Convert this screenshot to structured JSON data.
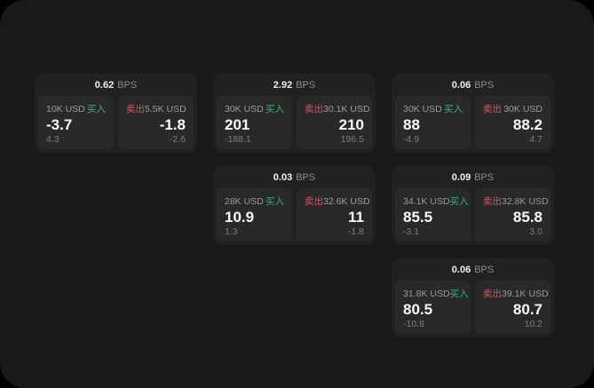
{
  "labels": {
    "buy": "买入",
    "sell": "卖出",
    "bps_unit": "BPS"
  },
  "colors": {
    "buy": "#3fae73",
    "sell": "#c55a6a",
    "value_text": "#fafafa",
    "muted_text": "#9b9b9b",
    "window_background": "#191919",
    "card_background": "#212121",
    "panel_background": "#292929"
  },
  "cards": [
    {
      "row": 1,
      "col": 1,
      "bps": "0.62",
      "buy": {
        "size": "10K USD",
        "value": "-3.7",
        "sub": "4.3"
      },
      "sell": {
        "size": "5.5K USD",
        "value": "-1.8",
        "sub": "-2.6"
      }
    },
    {
      "row": 1,
      "col": 2,
      "bps": "2.92",
      "buy": {
        "size": "30K USD",
        "value": "201",
        "sub": "-188.1"
      },
      "sell": {
        "size": "30.1K USD",
        "value": "210",
        "sub": "196.5"
      }
    },
    {
      "row": 1,
      "col": 3,
      "bps": "0.06",
      "buy": {
        "size": "30K USD",
        "value": "88",
        "sub": "-4.9"
      },
      "sell": {
        "size": "30K USD",
        "value": "88.2",
        "sub": "4.7"
      }
    },
    {
      "row": 2,
      "col": 2,
      "bps": "0.03",
      "buy": {
        "size": "28K USD",
        "value": "10.9",
        "sub": "1.3"
      },
      "sell": {
        "size": "32.6K USD",
        "value": "11",
        "sub": "-1.8"
      }
    },
    {
      "row": 2,
      "col": 3,
      "bps": "0.09",
      "buy": {
        "size": "34.1K USD",
        "value": "85.5",
        "sub": "-3.1"
      },
      "sell": {
        "size": "32.8K USD",
        "value": "85.8",
        "sub": "3.0"
      }
    },
    {
      "row": 3,
      "col": 3,
      "bps": "0.06",
      "buy": {
        "size": "31.8K USD",
        "value": "80.5",
        "sub": "-10.8"
      },
      "sell": {
        "size": "39.1K USD",
        "value": "80.7",
        "sub": "10.2"
      }
    }
  ]
}
